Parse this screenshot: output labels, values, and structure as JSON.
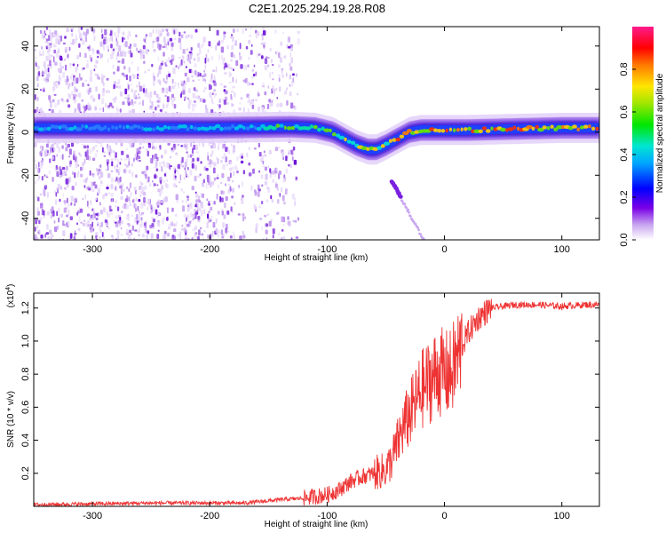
{
  "title": "C2E1.2025.294.19.28.R08",
  "chart_data": [
    {
      "type": "heatmap",
      "xlabel": "Height of straight line (km)",
      "ylabel": "Frequency (Hz)",
      "xlim": [
        -350,
        132
      ],
      "ylim": [
        -50,
        49
      ],
      "xticks": [
        -300,
        -200,
        -100,
        0,
        100
      ],
      "xtick_labels": [
        "-300",
        "-200",
        "-100",
        "0",
        "100"
      ],
      "yticks": [
        -40,
        -20,
        0,
        20,
        40
      ],
      "ytick_labels": [
        "-40",
        "-20",
        "0",
        "20",
        "40"
      ],
      "ridge": {
        "x": [
          -350,
          -200,
          -130,
          -110,
          -95,
          -85,
          -75,
          -65,
          -58,
          -50,
          -40,
          -30,
          -20,
          -10,
          0,
          20,
          60,
          100,
          132
        ],
        "y": [
          2,
          2,
          2.5,
          2,
          0,
          -3,
          -6,
          -8,
          -8,
          -6,
          -3,
          0,
          1,
          1,
          1,
          1,
          1.5,
          2,
          2
        ]
      },
      "colorbar": {
        "label": "Normalized spectral amplitude",
        "range": [
          0,
          1
        ],
        "ticks": [
          0.0,
          0.2,
          0.4,
          0.6,
          0.8
        ],
        "tick_labels": [
          "0.0",
          "0.2",
          "0.4",
          "0.6",
          "0.8"
        ]
      }
    },
    {
      "type": "line",
      "xlabel": "Height of straight line (km)",
      "ylabel": "SNR (10 * v/v)",
      "scale_label": "(x10",
      "scale_exp": "4",
      "scale_close": ")",
      "xlim": [
        -350,
        132
      ],
      "ylim": [
        0,
        1.29
      ],
      "xticks": [
        -300,
        -200,
        -100,
        0,
        100
      ],
      "xtick_labels": [
        "-300",
        "-200",
        "-100",
        "0",
        "100"
      ],
      "yticks": [
        0.2,
        0.4,
        0.6,
        0.8,
        1.0,
        1.2
      ],
      "ytick_labels": [
        "0.2",
        "0.4",
        "0.6",
        "0.8",
        "1.0",
        "1.2"
      ],
      "color": "#ee3333",
      "series": [
        {
          "name": "SNR",
          "x": [
            -350,
            -250,
            -200,
            -170,
            -140,
            -120,
            -100,
            -90,
            -80,
            -70,
            -60,
            -50,
            -45,
            -40,
            -35,
            -30,
            -25,
            -20,
            -15,
            -10,
            -5,
            0,
            5,
            10,
            15,
            20,
            25,
            30,
            40,
            50,
            60,
            80,
            100,
            120,
            132
          ],
          "values": [
            0.01,
            0.02,
            0.02,
            0.02,
            0.04,
            0.05,
            0.07,
            0.1,
            0.15,
            0.18,
            0.2,
            0.22,
            0.28,
            0.38,
            0.48,
            0.55,
            0.62,
            0.7,
            0.74,
            0.78,
            0.82,
            0.8,
            0.8,
            0.88,
            0.97,
            1.05,
            1.1,
            1.15,
            1.2,
            1.21,
            1.22,
            1.22,
            1.21,
            1.22,
            1.22
          ]
        }
      ]
    }
  ]
}
